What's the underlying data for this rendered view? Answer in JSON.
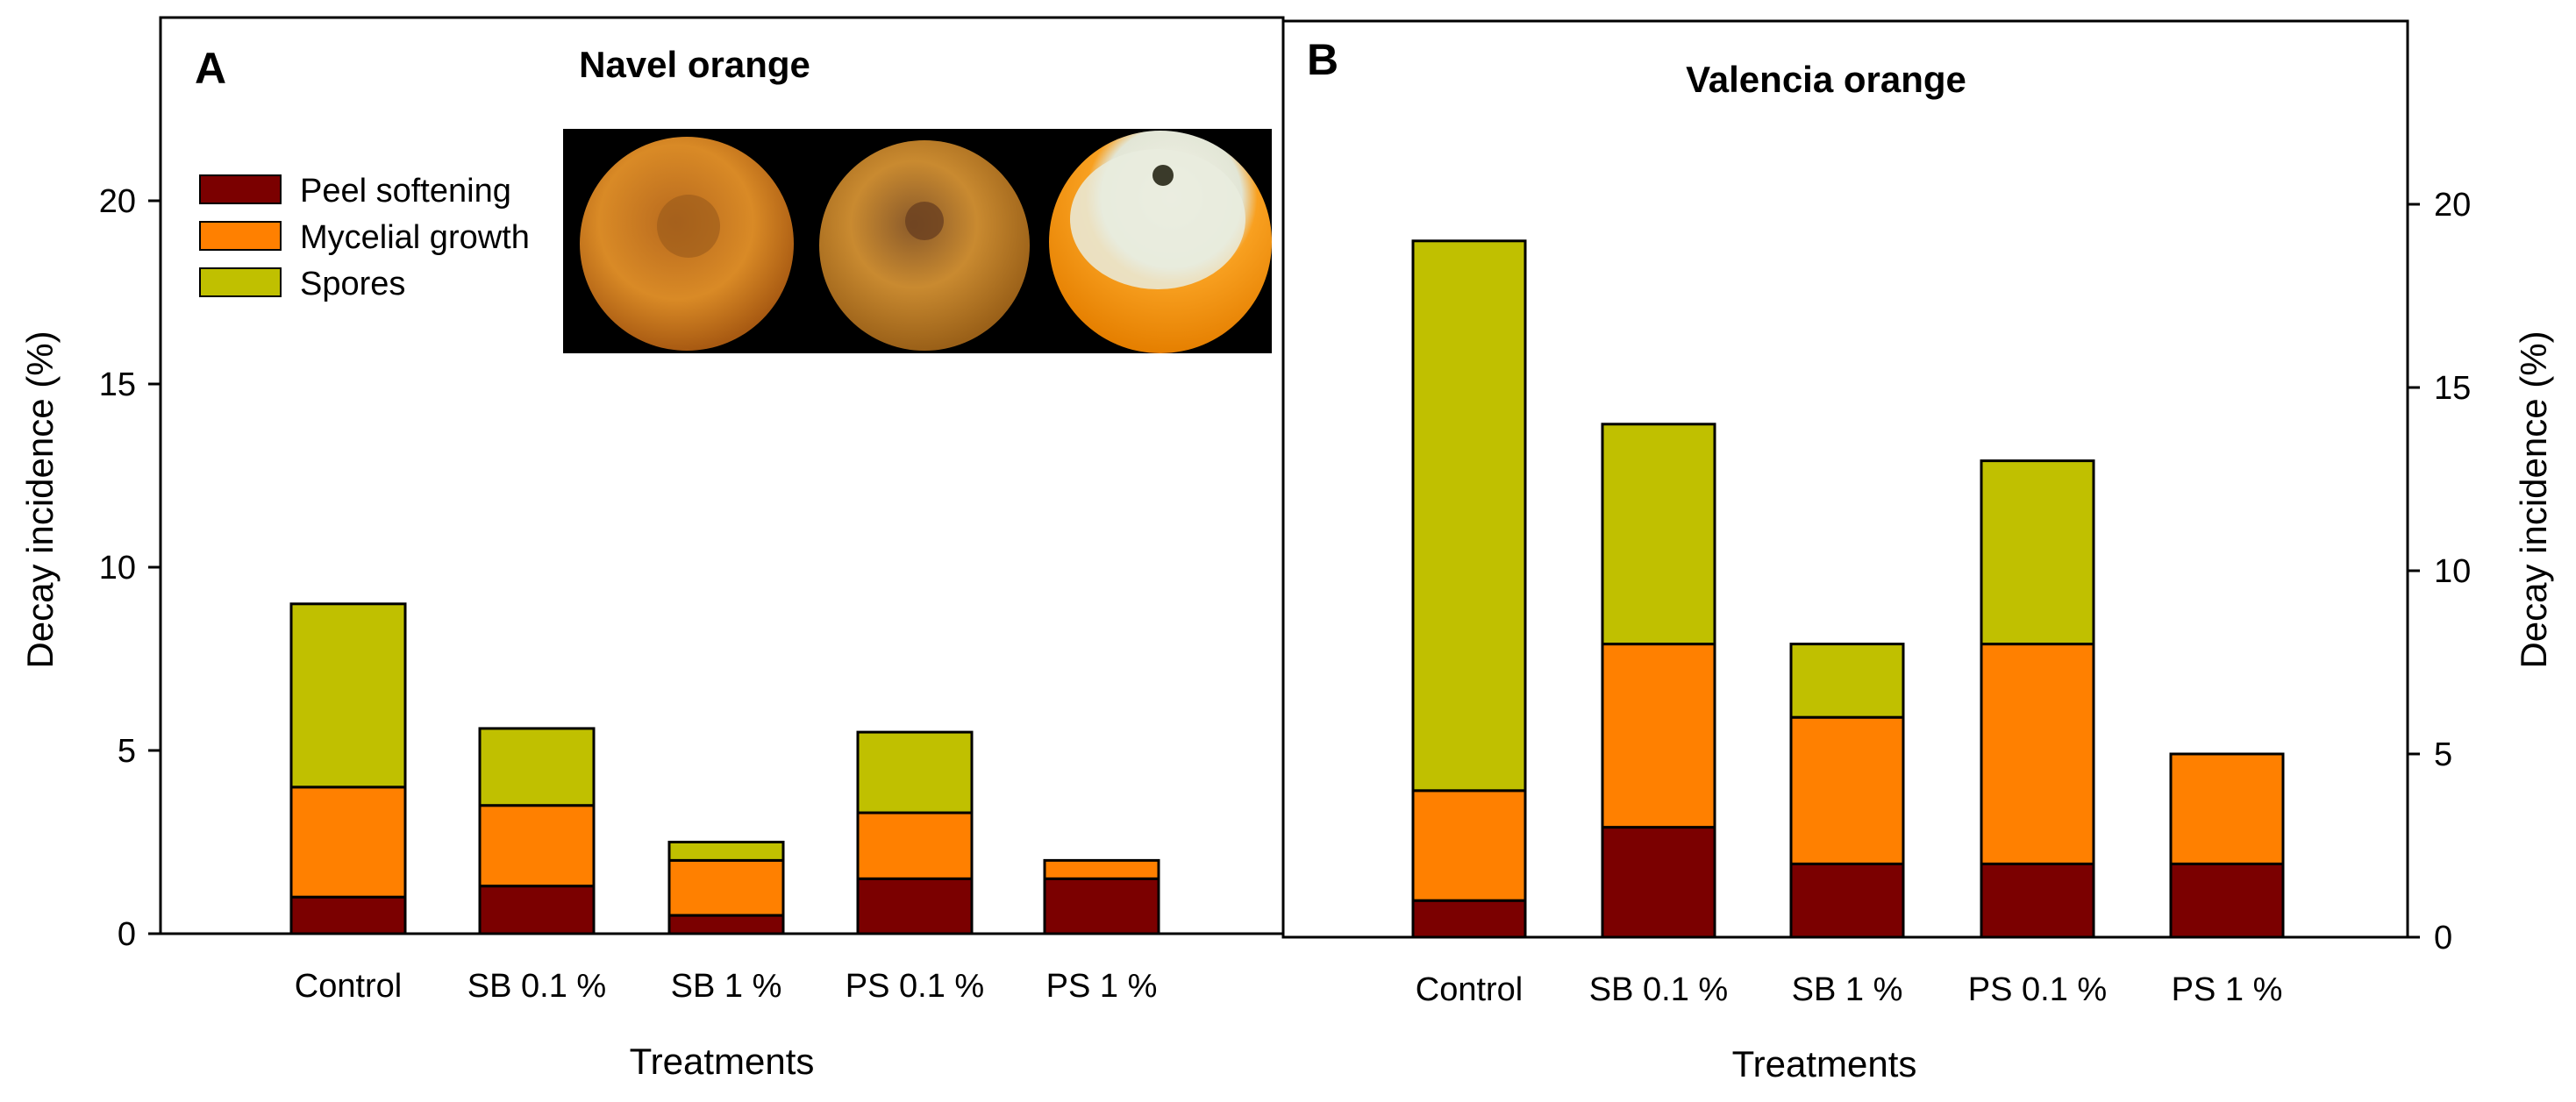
{
  "colors": {
    "peel_softening": "#7b0000",
    "mycelial_growth": "#ff8000",
    "spores": "#c0c000"
  },
  "legend": [
    "Peel softening",
    "Mycelial growth",
    "Spores"
  ],
  "inset_photo": {
    "label": "Navel orange decay progression photo",
    "fruits": [
      "peel-softening-fruit",
      "mycelial-growth-fruit",
      "sporulating-fruit"
    ]
  },
  "chart_data": [
    {
      "type": "bar",
      "stacked": true,
      "panel": "A",
      "title": "Navel orange",
      "xlabel": "Treatments",
      "ylabel": "Decay incidence (%)",
      "ylim": [
        0,
        25
      ],
      "yticks": [
        0,
        5,
        10,
        15,
        20
      ],
      "axis_side": "left",
      "categories": [
        "Control",
        "SB 0.1 %",
        "SB 1 %",
        "PS 0.1 %",
        "PS 1 %"
      ],
      "series": [
        {
          "name": "Peel softening",
          "values": [
            1.0,
            1.3,
            0.5,
            1.5,
            1.5
          ]
        },
        {
          "name": "Mycelial growth",
          "values": [
            3.0,
            2.2,
            1.5,
            1.8,
            0.5
          ]
        },
        {
          "name": "Spores",
          "values": [
            5.0,
            2.1,
            0.5,
            2.2,
            0.0
          ]
        }
      ]
    },
    {
      "type": "bar",
      "stacked": true,
      "panel": "B",
      "title": "Valencia orange",
      "xlabel": "Treatments",
      "ylabel": "Decay incidence (%)",
      "ylim": [
        0,
        25
      ],
      "yticks": [
        0,
        5,
        10,
        15,
        20
      ],
      "axis_side": "right",
      "categories": [
        "Control",
        "SB 0.1 %",
        "SB 1 %",
        "PS 0.1 %",
        "PS 1 %"
      ],
      "series": [
        {
          "name": "Peel softening",
          "values": [
            1.0,
            3.0,
            2.0,
            2.0,
            2.0
          ]
        },
        {
          "name": "Mycelial growth",
          "values": [
            3.0,
            5.0,
            4.0,
            6.0,
            3.0
          ]
        },
        {
          "name": "Spores",
          "values": [
            15.0,
            6.0,
            2.0,
            5.0,
            0.0
          ]
        }
      ]
    }
  ]
}
